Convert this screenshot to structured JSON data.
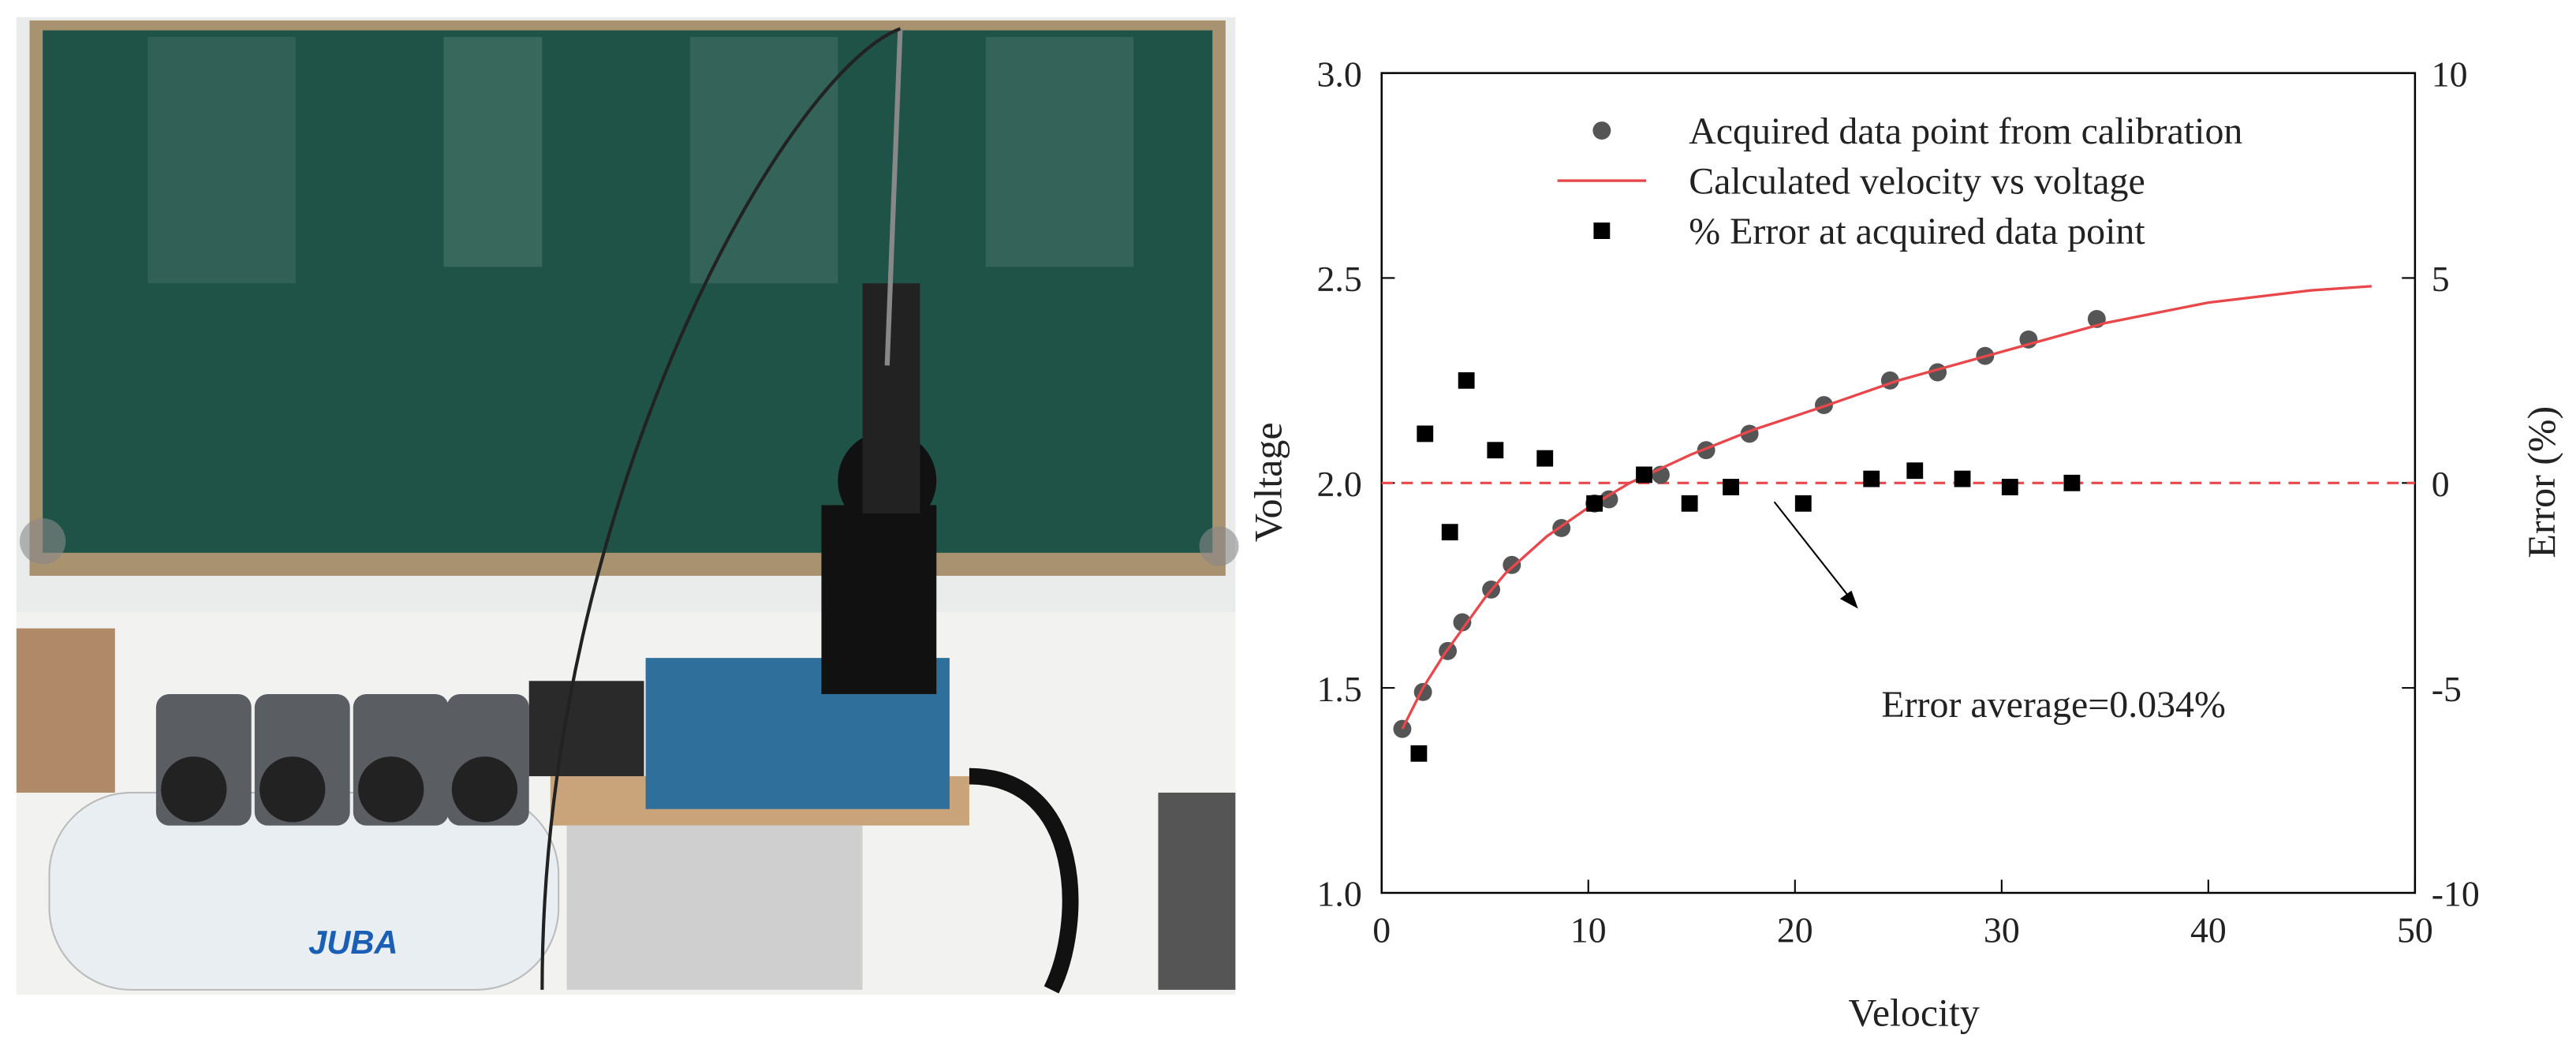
{
  "photo": {
    "brand": "JUBA"
  },
  "chart_data": {
    "type": "scatter",
    "xlabel": "Velocity",
    "ylabel": "Voltage",
    "y2label": "Error (%)",
    "xlim": [
      0,
      50
    ],
    "xticks": [
      0,
      10,
      20,
      30,
      40,
      50
    ],
    "ylim": [
      1.0,
      3.0
    ],
    "yticks": [
      {
        "value": 1.0,
        "label": "1.0"
      },
      1.5,
      {
        "value": 2.0,
        "label": "2.0"
      },
      2.5,
      {
        "value": 3.0,
        "label": "3.0"
      }
    ],
    "y2lim": [
      -10,
      10
    ],
    "y2ticks": [
      -10,
      -5,
      0,
      5,
      10
    ],
    "reference_line": {
      "axis": "y2",
      "value": 0,
      "color": "#e8474b"
    },
    "annotation": "Error average=0.034%",
    "series": [
      {
        "name": "Acquired data point from calibration",
        "type": "scatter",
        "marker": "circle",
        "color": "#555555",
        "x": [
          1.0,
          2.0,
          3.2,
          3.9,
          5.3,
          6.3,
          8.7,
          10.3,
          11.0,
          13.5,
          15.7,
          17.8,
          21.4,
          24.6,
          26.9,
          29.2,
          31.3,
          34.6
        ],
        "values": [
          1.4,
          1.49,
          1.59,
          1.66,
          1.74,
          1.8,
          1.89,
          1.95,
          1.96,
          2.02,
          2.08,
          2.12,
          2.19,
          2.25,
          2.27,
          2.31,
          2.35,
          2.4
        ]
      },
      {
        "name": "Calculated velocity vs voltage",
        "type": "line",
        "color": "#e8474b",
        "x": [
          1,
          2,
          3,
          4,
          5,
          6,
          8,
          10,
          12,
          15,
          18,
          21,
          25,
          30,
          35,
          40,
          45,
          47.9
        ],
        "values": [
          1.4,
          1.5,
          1.58,
          1.65,
          1.72,
          1.78,
          1.87,
          1.94,
          2.0,
          2.07,
          2.13,
          2.18,
          2.25,
          2.32,
          2.39,
          2.44,
          2.47,
          2.48
        ]
      },
      {
        "name": "% Error at acquired data point",
        "type": "scatter",
        "marker": "square",
        "color": "#000000",
        "axis": "y2",
        "x": [
          1.8,
          2.1,
          3.3,
          4.1,
          5.5,
          7.9,
          10.3,
          12.7,
          14.9,
          16.9,
          20.4,
          23.7,
          25.8,
          28.1,
          30.4,
          33.4
        ],
        "values": [
          -6.6,
          1.2,
          -1.2,
          2.5,
          0.8,
          0.6,
          -0.5,
          0.2,
          -0.5,
          -0.1,
          -0.5,
          0.1,
          0.3,
          0.1,
          -0.1,
          0.0
        ]
      }
    ]
  }
}
